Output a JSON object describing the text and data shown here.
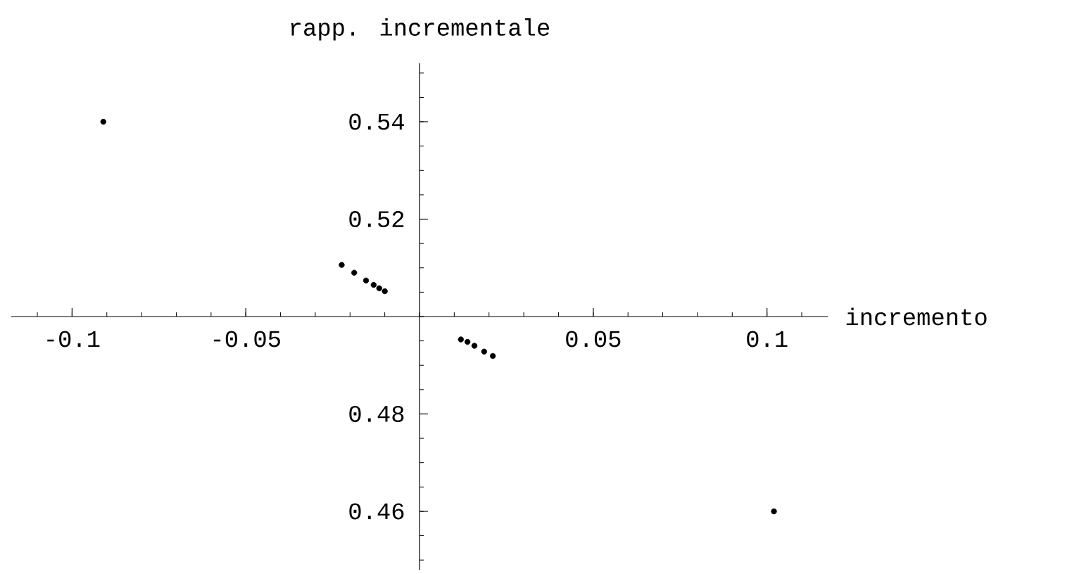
{
  "chart_data": {
    "type": "scatter",
    "xlabel": "incremento",
    "ylabel": "rapp. incrementale",
    "x": [
      -0.091,
      -0.0224,
      -0.0188,
      -0.0154,
      -0.0132,
      -0.0116,
      -0.01,
      0.0119,
      0.0138,
      0.0158,
      0.0186,
      0.0211,
      0.102
    ],
    "values": [
      0.54,
      0.5106,
      0.509,
      0.5074,
      0.5065,
      0.5058,
      0.5052,
      0.4953,
      0.4948,
      0.494,
      0.4928,
      0.4919,
      0.46
    ],
    "color": "#000000",
    "xlim": [
      -0.1175,
      0.1175
    ],
    "ylim": [
      0.448,
      0.552
    ],
    "xticks": [
      -0.1,
      -0.05,
      0.05,
      0.1
    ],
    "yticks": [
      0.46,
      0.48,
      0.52,
      0.54
    ]
  }
}
